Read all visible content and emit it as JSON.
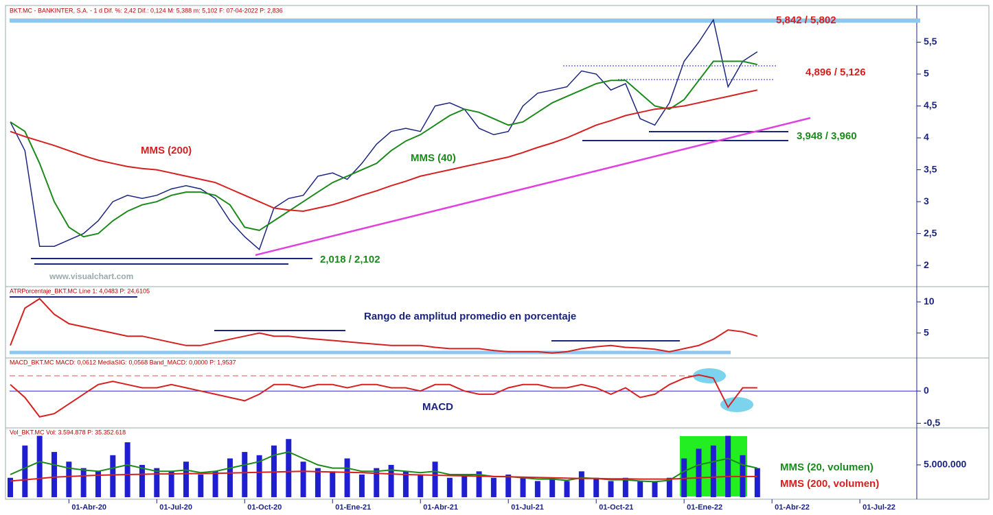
{
  "chart_data": [
    {
      "type": "line",
      "header": "BKT.MC - BANKINTER, S.A. -  1 d  Dif. %: 2,42  Dif.: 0,124  M: 5,388  m: 5,102  F: 07-04-2022  P: 2,836",
      "annotations": [
        "5,842 / 5,802",
        "4,896 / 5,126",
        "3,948 / 3,960",
        "2,018 / 2,102",
        "MMS (200)",
        "MMS (40)",
        "www.visualchart.com"
      ],
      "ylim": [
        1.7,
        6.0
      ],
      "yticks": [
        2,
        {
          "value": 2.5,
          "label": "2,5"
        },
        3,
        {
          "value": 3.5,
          "label": "3,5"
        },
        4,
        {
          "value": 4.5,
          "label": "4,5"
        },
        5,
        {
          "value": 5.5,
          "label": "5,5"
        }
      ],
      "series": [
        {
          "name": "BKT.MC",
          "color": "#1a237e",
          "values": [
            4.25,
            3.8,
            2.3,
            2.3,
            2.4,
            2.5,
            2.7,
            3.0,
            3.1,
            3.05,
            3.1,
            3.2,
            3.25,
            3.2,
            3.05,
            2.7,
            2.45,
            2.25,
            2.9,
            3.05,
            3.1,
            3.4,
            3.45,
            3.35,
            3.6,
            3.9,
            4.1,
            4.15,
            4.1,
            4.5,
            4.55,
            4.45,
            4.15,
            4.05,
            4.1,
            4.5,
            4.7,
            4.75,
            4.8,
            5.05,
            5.0,
            4.75,
            4.85,
            4.3,
            4.2,
            4.55,
            5.2,
            5.5,
            5.85,
            4.8,
            5.2,
            5.35,
            null,
            null,
            null,
            null,
            null,
            null,
            null
          ]
        },
        {
          "name": "MMS (40)",
          "color": "#1b8a1b",
          "values": [
            4.25,
            4.1,
            3.6,
            3.0,
            2.6,
            2.45,
            2.5,
            2.7,
            2.85,
            2.95,
            3.0,
            3.1,
            3.15,
            3.15,
            3.1,
            2.95,
            2.6,
            2.55,
            2.7,
            2.85,
            3.0,
            3.15,
            3.3,
            3.4,
            3.5,
            3.6,
            3.8,
            3.95,
            4.05,
            4.2,
            4.35,
            4.45,
            4.4,
            4.3,
            4.2,
            4.25,
            4.4,
            4.55,
            4.65,
            4.75,
            4.85,
            4.9,
            4.9,
            4.7,
            4.5,
            4.45,
            4.6,
            4.9,
            5.2,
            5.2,
            5.2,
            5.15,
            null,
            null,
            null,
            null,
            null,
            null,
            null
          ]
        },
        {
          "name": "MMS (200)",
          "color": "#d62020",
          "values": [
            4.1,
            4.02,
            3.95,
            3.88,
            3.8,
            3.72,
            3.65,
            3.6,
            3.55,
            3.52,
            3.5,
            3.45,
            3.4,
            3.35,
            3.3,
            3.2,
            3.1,
            3.0,
            2.9,
            2.87,
            2.85,
            2.9,
            2.95,
            3.02,
            3.1,
            3.17,
            3.25,
            3.32,
            3.4,
            3.45,
            3.5,
            3.55,
            3.6,
            3.65,
            3.7,
            3.77,
            3.85,
            3.92,
            4.0,
            4.1,
            4.2,
            4.27,
            4.35,
            4.4,
            4.45,
            4.47,
            4.5,
            4.55,
            4.6,
            4.65,
            4.7,
            4.75,
            null,
            null,
            null,
            null,
            null,
            null,
            null
          ]
        }
      ]
    },
    {
      "type": "line",
      "header": "ATRPorcentaje_BKT.MC  Line 1: 4,0483  P: 24,6105",
      "annotations": [
        "Rango de amplitud promedio en porcentaje"
      ],
      "ylim": [
        1,
        12
      ],
      "yticks": [
        5,
        10
      ],
      "series": [
        {
          "name": "ATRPorcentaje_BKT.MC",
          "color": "#d62020",
          "values": [
            3,
            9,
            10.5,
            8,
            6.5,
            6,
            5.5,
            5,
            4.5,
            4.5,
            4,
            3.5,
            3,
            3,
            3.5,
            4,
            4.5,
            5,
            4.5,
            4.5,
            4.2,
            4,
            3.8,
            3.6,
            3.4,
            3.2,
            3,
            3,
            3,
            2.7,
            2.5,
            2.5,
            2.5,
            2.2,
            2,
            2,
            2,
            1.8,
            2,
            2.5,
            2.8,
            3,
            2.7,
            2.6,
            2.4,
            2,
            2.5,
            3,
            4,
            5.5,
            5.2,
            4.5,
            null,
            null,
            null,
            null,
            null,
            null,
            null
          ]
        }
      ]
    },
    {
      "type": "line",
      "header": "MACD_BKT.MC  MACD: 0,0612  MediaSIG: 0,0568  Band_MACD: 0,0000  P: 1,9537",
      "annotations": [
        "MACD"
      ],
      "ylim": [
        -0.55,
        0.47
      ],
      "yticks": [
        {
          "value": -0.5,
          "label": "-0,5"
        },
        0
      ],
      "series": [
        {
          "name": "MACD",
          "color": "#d62020",
          "values": [
            0.1,
            -0.1,
            -0.4,
            -0.35,
            -0.2,
            -0.05,
            0.1,
            0.15,
            0.1,
            0.05,
            0.05,
            0.1,
            0.05,
            0,
            -0.05,
            -0.1,
            -0.15,
            -0.05,
            0.1,
            0.1,
            0.05,
            0.1,
            0.1,
            0.05,
            0.1,
            0.1,
            0.05,
            0.05,
            0,
            0.1,
            0.1,
            0,
            -0.05,
            -0.05,
            0.05,
            0.1,
            0.1,
            0.05,
            0.05,
            0.1,
            0.05,
            -0.05,
            0.05,
            -0.1,
            -0.05,
            0.1,
            0.2,
            0.25,
            0.2,
            -0.25,
            0.05,
            0.05,
            null,
            null,
            null,
            null,
            null,
            null,
            null
          ]
        }
      ]
    },
    {
      "type": "bar",
      "header": "Vol_BKT.MC  Vol: 3.594.878  P: 35.352.618",
      "annotations": [
        "MMS (20, volumen)",
        "MMS (200, volumen)"
      ],
      "categories": [
        null,
        null,
        null,
        null,
        "01-Abr-20",
        null,
        null,
        null,
        null,
        null,
        "01-Jul-20",
        null,
        null,
        null,
        null,
        null,
        "01-Oct-20",
        null,
        null,
        null,
        null,
        null,
        "01-Ene-21",
        null,
        null,
        null,
        null,
        null,
        "01-Abr-21",
        null,
        null,
        null,
        null,
        null,
        "01-Jul-21",
        null,
        null,
        null,
        null,
        null,
        "01-Oct-21",
        null,
        null,
        null,
        null,
        null,
        "01-Ene-22",
        null,
        null,
        null,
        null,
        null,
        "01-Abr-22",
        null,
        null,
        null,
        null,
        null,
        "01-Jul-22"
      ],
      "ylim": [
        0,
        10300000
      ],
      "yticks": [
        {
          "value": 5000000,
          "label": "5.000.000"
        }
      ],
      "series": [
        {
          "name": "Vol_BKT.MC",
          "color": "#1f1fd0",
          "values": [
            3000000,
            8000000,
            9500000,
            7000000,
            5500000,
            4500000,
            4000000,
            6500000,
            8500000,
            5000000,
            4500000,
            4000000,
            5500000,
            3500000,
            4000000,
            6000000,
            7000000,
            6500000,
            8000000,
            9000000,
            5500000,
            4500000,
            4000000,
            6000000,
            3500000,
            4500000,
            5000000,
            4000000,
            3500000,
            5500000,
            3000000,
            3500000,
            4000000,
            3000000,
            3500000,
            3000000,
            2500000,
            3000000,
            2500000,
            4000000,
            3000000,
            2500000,
            3000000,
            2500000,
            2500000,
            3000000,
            6000000,
            7500000,
            8000000,
            9500000,
            6500000,
            4500000,
            null,
            null,
            null,
            null,
            null,
            null,
            null
          ]
        },
        {
          "name": "MMS (20, volumen)",
          "color": "#1b8a1b",
          "values": [
            3500000,
            4500000,
            5500000,
            5000000,
            4500000,
            4200000,
            4000000,
            4500000,
            5000000,
            4500000,
            4000000,
            4000000,
            4200000,
            3800000,
            4000000,
            4500000,
            5000000,
            5500000,
            6500000,
            7000000,
            6000000,
            5000000,
            4500000,
            4500000,
            4000000,
            4000000,
            4200000,
            4000000,
            3800000,
            4000000,
            3500000,
            3500000,
            3500000,
            3200000,
            3200000,
            3000000,
            2800000,
            2800000,
            2600000,
            3000000,
            2900000,
            2700000,
            2700000,
            2500000,
            2400000,
            2600000,
            4000000,
            5000000,
            5500000,
            6000000,
            5000000,
            4500000,
            null,
            null,
            null,
            null,
            null,
            null,
            null
          ]
        },
        {
          "name": "MMS (200, volumen)",
          "color": "#d62020",
          "values": [
            2500000,
            2700000,
            2900000,
            3100000,
            3200000,
            3300000,
            3400000,
            3450000,
            3500000,
            3550000,
            3600000,
            3600000,
            3650000,
            3650000,
            3700000,
            3750000,
            3800000,
            3850000,
            3900000,
            3950000,
            4000000,
            3950000,
            3900000,
            3850000,
            3800000,
            3700000,
            3600000,
            3500000,
            3450000,
            3400000,
            3350000,
            3300000,
            3250000,
            3200000,
            3150000,
            3100000,
            3050000,
            3000000,
            2950000,
            2900000,
            2900000,
            2850000,
            2850000,
            2800000,
            2800000,
            2800000,
            2900000,
            3000000,
            3100000,
            3200000,
            3200000,
            3200000,
            null,
            null,
            null,
            null,
            null,
            null,
            null
          ]
        }
      ]
    }
  ]
}
